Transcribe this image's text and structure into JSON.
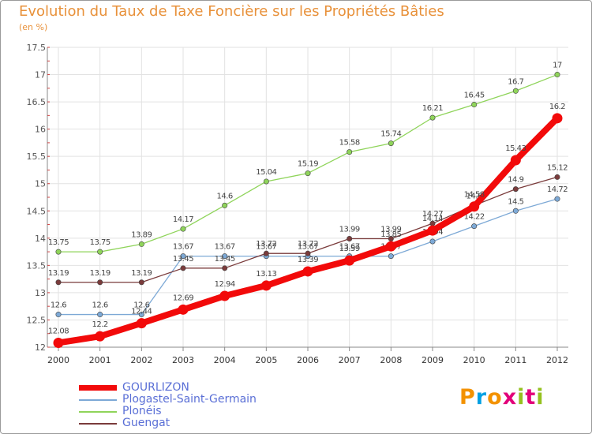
{
  "chart_data": {
    "type": "line",
    "title": "Evolution du Taux de Taxe Foncière sur les Propriétés Bâties",
    "unit_label": "(en %)",
    "x": [
      "2000",
      "2001",
      "2002",
      "2003",
      "2004",
      "2005",
      "2006",
      "2007",
      "2008",
      "2009",
      "2010",
      "2011",
      "2012"
    ],
    "ylim": [
      12,
      17.5
    ],
    "yticks": [
      "12",
      "12.5",
      "13",
      "13.5",
      "14",
      "14.5",
      "15",
      "15.5",
      "16",
      "16.5",
      "17",
      "17.5"
    ],
    "grid": true,
    "legend_position": "bottom-left",
    "series": [
      {
        "name": "Plonéis",
        "color": "#8fd45a",
        "values": [
          13.75,
          13.75,
          13.89,
          14.17,
          14.6,
          15.04,
          15.19,
          15.58,
          15.74,
          16.21,
          16.45,
          16.7,
          17
        ],
        "labels": [
          "13.75",
          "13.75",
          "13.89",
          "14.17",
          "14.6",
          "15.04",
          "15.19",
          "15.58",
          "15.74",
          "16.21",
          "16.45",
          "16.7",
          "17"
        ]
      },
      {
        "name": "Plogastel-Saint-Germain",
        "color": "#7da9d6",
        "values": [
          12.6,
          12.6,
          12.6,
          13.67,
          13.67,
          13.67,
          13.67,
          13.67,
          13.67,
          13.94,
          14.22,
          14.5,
          14.72
        ],
        "labels": [
          "12.6",
          "12.6",
          "12.6",
          "13.67",
          "13.67",
          "13.67",
          "13.67",
          "13.67",
          "13.67",
          "13.94",
          "14.22",
          "14.5",
          "14.72"
        ]
      },
      {
        "name": "Guengat",
        "color": "#7a3b3b",
        "values": [
          13.19,
          13.19,
          13.19,
          13.45,
          13.45,
          13.72,
          13.72,
          13.99,
          13.99,
          14.27,
          14.6,
          14.9,
          15.12
        ],
        "labels": [
          "13.19",
          "13.19",
          "13.19",
          "13.45",
          "13.45",
          "13.72",
          "13.72",
          "13.99",
          "13.99",
          "14.27",
          "14.6",
          "14.9",
          "15.12"
        ]
      },
      {
        "name": "GOURLIZON",
        "color": "#f20a0a",
        "values": [
          12.08,
          12.2,
          12.44,
          12.69,
          12.94,
          13.13,
          13.39,
          13.59,
          13.85,
          14.14,
          14.58,
          15.43,
          16.2
        ],
        "labels": [
          "12.08",
          "12.2",
          "12.44",
          "12.69",
          "12.94",
          "13.13",
          "13.39",
          "13.59",
          "13.85",
          "14.14",
          "14.58",
          "15.43",
          "16.2"
        ]
      }
    ],
    "legend": [
      "GOURLIZON",
      "Plogastel-Saint-Germain",
      "Plonéis",
      "Guengat"
    ]
  },
  "brand": {
    "letters": [
      "P",
      "r",
      "o",
      "x",
      "i",
      "t",
      "i"
    ],
    "colors": [
      "#f39200",
      "#00a0e3",
      "#f39200",
      "#e2007a",
      "#95c11f",
      "#e2007a",
      "#95c11f"
    ]
  }
}
